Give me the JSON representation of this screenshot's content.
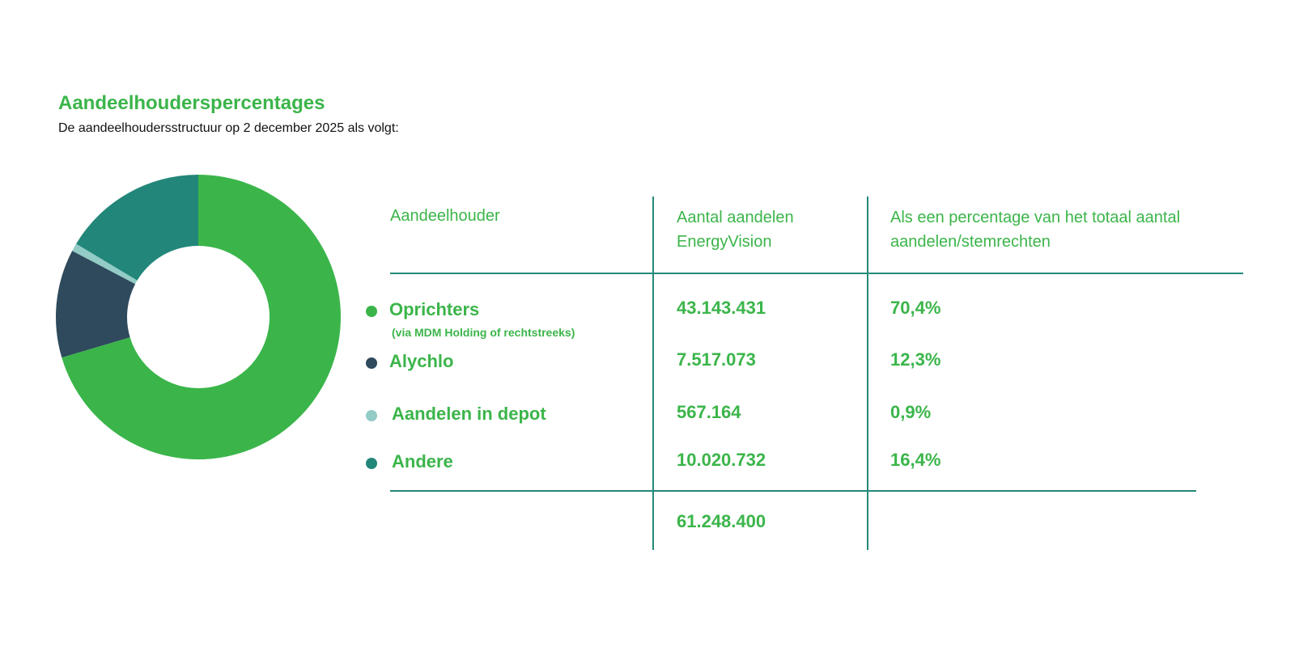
{
  "title": "Aandeelhouderspercentages",
  "subtitle": "De aandeelhoudersstructuur op 2 december 2025 als volgt:",
  "table": {
    "headers": [
      "Aandeelhouder",
      "Aantal aandelen EnergyVision",
      "Als een percentage van het totaal aantal aandelen/stemrechten"
    ],
    "total_shares": "61.248.400"
  },
  "chart_data": {
    "type": "pie",
    "donut": true,
    "title": "Aandeelhouderspercentages",
    "categories": [
      "Oprichters",
      "Alychlo",
      "Aandelen in depot",
      "Andere"
    ],
    "sublabels": [
      "(via MDM Holding of rechtstreeks)",
      "",
      "",
      ""
    ],
    "shares": [
      "43.143.431",
      "7.517.073",
      "567.164",
      "10.020.732"
    ],
    "percent_labels": [
      "70,4%",
      "12,3%",
      "0,9%",
      "16,4%"
    ],
    "values": [
      70.4,
      12.3,
      0.9,
      16.4
    ],
    "colors": [
      "#3bb54a",
      "#2e4a5c",
      "#93cbc6",
      "#22877a"
    ]
  }
}
